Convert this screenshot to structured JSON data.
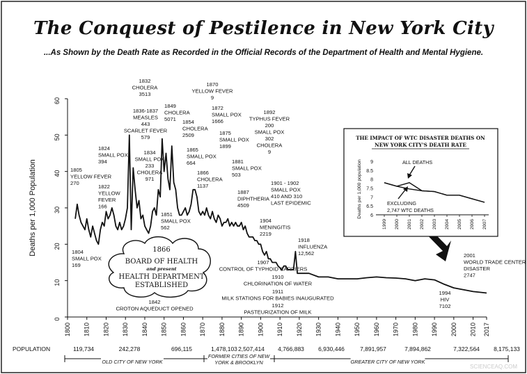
{
  "title": "The Conquest of Pestilence in New York City",
  "subtitle": "...As Shown by the Death Rate as Recorded in the Official Records of the Department of Health and Mental Hygiene.",
  "watermark": "SCIENCEAQ.COM",
  "chart_data": [
    {
      "type": "line",
      "ylabel": "Deaths per 1,000 Population",
      "xlim": [
        1800,
        2017
      ],
      "ylim": [
        0,
        60
      ],
      "x_ticks": [
        "1800",
        "1810",
        "1820",
        "1830",
        "1840",
        "1850",
        "1860",
        "1870",
        "1880",
        "1890",
        "1900",
        "1910",
        "1920",
        "1930",
        "1940",
        "1950",
        "1960",
        "1970",
        "1980",
        "1990",
        "2000",
        "2010",
        "2017"
      ],
      "y_ticks": [
        "0",
        "10",
        "20",
        "30",
        "40",
        "50",
        "60"
      ],
      "series": [
        {
          "x": [
            1804,
            1805,
            1806,
            1807,
            1808,
            1809,
            1810,
            1811,
            1812,
            1813,
            1814,
            1815,
            1816,
            1817,
            1818,
            1819,
            1820,
            1821,
            1822,
            1823,
            1824,
            1825,
            1826,
            1827,
            1828,
            1829,
            1830,
            1831,
            1832,
            1833,
            1834,
            1835,
            1836,
            1837,
            1838,
            1839,
            1840,
            1841,
            1842,
            1843,
            1844,
            1845,
            1846,
            1847,
            1848,
            1849,
            1850,
            1851,
            1852,
            1853,
            1854,
            1855,
            1856,
            1857,
            1858,
            1859,
            1860,
            1861,
            1862,
            1863,
            1864,
            1865,
            1866,
            1867,
            1868,
            1869,
            1870,
            1871,
            1872,
            1873,
            1874,
            1875,
            1876,
            1877,
            1878,
            1879,
            1880,
            1881,
            1882,
            1883,
            1884,
            1885,
            1886,
            1887,
            1888,
            1889,
            1890,
            1891,
            1892,
            1893,
            1894,
            1895,
            1896,
            1897,
            1898,
            1899,
            1900,
            1901,
            1902,
            1903,
            1904,
            1905,
            1906,
            1907,
            1908,
            1909,
            1910,
            1911,
            1912,
            1913,
            1914,
            1915,
            1916,
            1917,
            1918,
            1919,
            1920,
            1925,
            1930,
            1935,
            1940,
            1945,
            1950,
            1955,
            1960,
            1965,
            1970,
            1975,
            1980,
            1985,
            1990,
            1995,
            2000,
            2005,
            2010,
            2015,
            2017
          ],
          "y": [
            27,
            31,
            28,
            26,
            25,
            24,
            27,
            24,
            22,
            25,
            23,
            21,
            20,
            24,
            26,
            25,
            29,
            27,
            28,
            30,
            28,
            25,
            24,
            26,
            24,
            25,
            27,
            30,
            50,
            24,
            41,
            35,
            30,
            32,
            27,
            28,
            25,
            24,
            23,
            25,
            29,
            30,
            28,
            35,
            33,
            49,
            40,
            45,
            38,
            35,
            47,
            37,
            35,
            30,
            28,
            28,
            29,
            30,
            28,
            29,
            31,
            35,
            35,
            33,
            29,
            28,
            29,
            28,
            30,
            28,
            27,
            29,
            27,
            26,
            28,
            27,
            25,
            26,
            26,
            27,
            25,
            26,
            25,
            26,
            25,
            25,
            26,
            24,
            25,
            23,
            22,
            22,
            22,
            21,
            21,
            20,
            20,
            18,
            17,
            18,
            16,
            16,
            15,
            15,
            15,
            14,
            13.5,
            13,
            14,
            14,
            13,
            13,
            13,
            13,
            18,
            12,
            12,
            12,
            11,
            11,
            10.5,
            10.5,
            10.5,
            10.8,
            11,
            10.8,
            10.7,
            10.5,
            10,
            10.5,
            10.2,
            9,
            8,
            7.5,
            7,
            6.7,
            6.6
          ]
        }
      ],
      "annotations": [
        {
          "year": "1805",
          "lines": [
            "1805",
            "YELLOW FEVER",
            "270"
          ]
        },
        {
          "year": "1804",
          "lines": [
            "1804",
            "SMALL POX",
            "169"
          ]
        },
        {
          "year": "1824",
          "lines": [
            "1824",
            "SMALL POX",
            "394"
          ]
        },
        {
          "year": "1822",
          "lines": [
            "1822",
            "YELLOW",
            "FEVER",
            "166"
          ]
        },
        {
          "year": "1832",
          "lines": [
            "1832",
            "CHOLERA",
            "3513"
          ]
        },
        {
          "year": "1836-1837",
          "lines": [
            "1836-1837",
            "MEASLES",
            "443",
            "SCARLET FEVER",
            "579"
          ]
        },
        {
          "year": "1834",
          "lines": [
            "1834",
            "SMALL POX",
            "233",
            "CHOLERA",
            "971"
          ]
        },
        {
          "year": "1849",
          "lines": [
            "1849",
            "CHOLERA",
            "5071"
          ]
        },
        {
          "year": "1854",
          "lines": [
            "1854",
            "CHOLERA",
            "2509"
          ]
        },
        {
          "year": "1851",
          "lines": [
            "1851",
            "SMALL POX",
            "562"
          ]
        },
        {
          "year": "1870",
          "lines": [
            "1870",
            "YELLOW FEVER",
            "9"
          ]
        },
        {
          "year": "1872",
          "lines": [
            "1872",
            "SMALL POX",
            "1666"
          ]
        },
        {
          "year": "1865",
          "lines": [
            "1865",
            "SMALL POX",
            "664"
          ]
        },
        {
          "year": "1866",
          "lines": [
            "1866",
            "CHOLERA",
            "1137"
          ]
        },
        {
          "year": "1875",
          "lines": [
            "1875",
            "SMALL POX",
            "1899"
          ]
        },
        {
          "year": "1892",
          "lines": [
            "1892",
            "TYPHUS FEVER",
            "200",
            "SMALL POX",
            "302",
            "CHOLERA",
            "9"
          ]
        },
        {
          "year": "1881",
          "lines": [
            "1881",
            "SMALL POX",
            "503"
          ]
        },
        {
          "year": "1887",
          "lines": [
            "1887",
            "DIPHTHERIA",
            "4509"
          ]
        },
        {
          "year": "1901 - 1902",
          "lines": [
            "1901 - 1902",
            "SMALL POX",
            "410 AND 310",
            "LAST EPIDEMIC"
          ]
        },
        {
          "year": "1904",
          "lines": [
            "1904",
            "MENINGITIS",
            "2219"
          ]
        },
        {
          "year": "1918",
          "lines": [
            "1918",
            "INFLUENZA",
            "12,562"
          ]
        },
        {
          "year": "1907",
          "lines": [
            "1907",
            "CONTROL OF TYPHOID CARRIERS"
          ]
        },
        {
          "year": "1910",
          "lines": [
            "1910",
            "CHLORINATION OF WATER"
          ]
        },
        {
          "year": "1911",
          "lines": [
            "1911",
            "MILK STATIONS FOR BABIES INAUGURATED"
          ]
        },
        {
          "year": "1912",
          "lines": [
            "1912",
            "PASTEURIZATION OF MILK"
          ]
        },
        {
          "year": "1842",
          "lines": [
            "1842",
            "CROTON AQUEDUCT OPENED"
          ]
        },
        {
          "year": "1994",
          "lines": [
            "1994",
            "HIV",
            "7102"
          ]
        },
        {
          "year": "2001",
          "lines": [
            "2001",
            "WORLD TRADE CENTER",
            "DISASTER",
            "2747"
          ]
        }
      ],
      "cloud": [
        "1866",
        "BOARD OF HEALTH",
        "and present",
        "HEALTH DEPARTMENT",
        "ESTABLISHED"
      ],
      "population": {
        "label": "POPULATION",
        "values": [
          "119,734",
          "242,278",
          "696,115",
          "1,478,103",
          "2,507,414",
          "4,766,883",
          "6,930,446",
          "7,891,957",
          "7,894,862",
          "7,322,564",
          "8,175,133"
        ],
        "eras": [
          "OLD CITY OF NEW YORK",
          "FORMER CITIES OF NEW YORK & BROOKLYN",
          "GREATER CITY OF NEW YORK"
        ]
      }
    },
    {
      "type": "line",
      "title": "THE IMPACT OF WTC DISASTER DEATHS ON NEW YORK CITY'S DEATH RATE",
      "ylabel": "Deaths per 1,000 population",
      "categories": [
        "1999",
        "2000",
        "2001",
        "2002",
        "2003",
        "2004",
        "2005",
        "2006",
        "2007"
      ],
      "ylim": [
        6,
        9
      ],
      "y_ticks": [
        "6",
        "6.5",
        "7",
        "7.5",
        "8",
        "8.5",
        "9"
      ],
      "series": [
        {
          "name": "ALL DEATHS",
          "values": [
            7.8,
            7.6,
            7.8,
            7.35,
            7.3,
            7.1,
            7.1,
            6.9,
            6.7
          ]
        },
        {
          "name": "EXCLUDING 2,747 WTC DEATHS",
          "values": [
            7.8,
            7.6,
            7.45,
            7.35,
            7.3,
            7.1,
            7.1,
            6.9,
            6.7
          ]
        }
      ],
      "labels": [
        "ALL DEATHS",
        "EXCLUDING",
        "2,747 WTC DEATHS"
      ]
    }
  ]
}
